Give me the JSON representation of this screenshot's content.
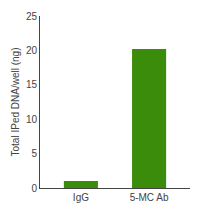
{
  "chart_data": {
    "type": "bar",
    "categories": [
      "IgG",
      "5-MC Ab"
    ],
    "values": [
      1.0,
      20.2
    ],
    "color": "#3a8c0a",
    "ylabel": "Total IPed DNA/well (ng)",
    "ylim": [
      0,
      25
    ],
    "yticks": [
      0,
      5,
      10,
      15,
      20,
      25
    ],
    "grid": false
  }
}
